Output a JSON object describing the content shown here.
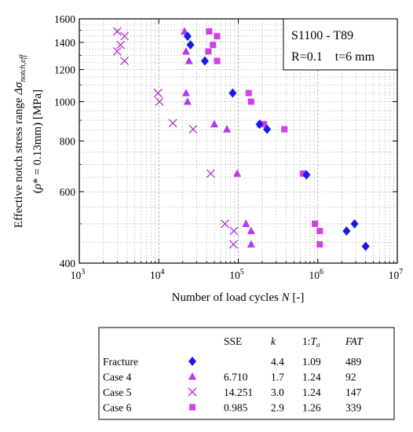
{
  "chart_data": {
    "type": "scatter",
    "x_scale": "log",
    "y_scale": "log",
    "xlim": [
      1000,
      10000000
    ],
    "ylim": [
      400,
      1600
    ],
    "xlabel": "Number of load cycles N [-]",
    "ylabel_line1": "Effective notch stress range Δσnotch,eff",
    "ylabel_line2": "(ρ* = 0.13mm) [MPa]",
    "x_ticks": [
      {
        "value": 1000,
        "base": "10",
        "exp": "3"
      },
      {
        "value": 10000,
        "base": "10",
        "exp": "4"
      },
      {
        "value": 100000,
        "base": "10",
        "exp": "5"
      },
      {
        "value": 1000000,
        "base": "10",
        "exp": "6"
      },
      {
        "value": 10000000,
        "base": "10",
        "exp": "7"
      }
    ],
    "y_ticks": [
      400,
      600,
      800,
      1000,
      1200,
      1400,
      1600
    ],
    "grid": true,
    "annotation": {
      "line1": "S1100 - T89",
      "line2": "R=0.1    t=6 mm"
    },
    "series": [
      {
        "name": "Fracture",
        "marker": "diamond",
        "color": "#1a1ae6",
        "points": [
          [
            23000,
            1450
          ],
          [
            25000,
            1380
          ],
          [
            38000,
            1260
          ],
          [
            85000,
            1050
          ],
          [
            185000,
            880
          ],
          [
            230000,
            855
          ],
          [
            720000,
            660
          ],
          [
            2300000,
            480
          ],
          [
            2900000,
            500
          ],
          [
            4000000,
            440
          ]
        ]
      },
      {
        "name": "Case 4",
        "marker": "triangle",
        "color": "#b338f0",
        "points": [
          [
            21000,
            1490
          ],
          [
            22000,
            1330
          ],
          [
            24000,
            1260
          ],
          [
            22000,
            1050
          ],
          [
            23000,
            1000
          ],
          [
            50000,
            880
          ],
          [
            72000,
            855
          ],
          [
            97000,
            665
          ],
          [
            125000,
            500
          ],
          [
            145000,
            480
          ],
          [
            145000,
            445
          ],
          [
            190000,
            880
          ]
        ]
      },
      {
        "name": "Case 5",
        "marker": "x",
        "color": "#b030d0",
        "points": [
          [
            3000,
            1490
          ],
          [
            3700,
            1450
          ],
          [
            3000,
            1330
          ],
          [
            3300,
            1380
          ],
          [
            3700,
            1260
          ],
          [
            9800,
            1050
          ],
          [
            10200,
            1000
          ],
          [
            15000,
            885
          ],
          [
            27000,
            855
          ],
          [
            45000,
            665
          ],
          [
            68000,
            500
          ],
          [
            88000,
            480
          ],
          [
            87000,
            445
          ]
        ]
      },
      {
        "name": "Case 6",
        "marker": "square",
        "color": "#d040e8",
        "points": [
          [
            43000,
            1490
          ],
          [
            54000,
            1450
          ],
          [
            42000,
            1330
          ],
          [
            48000,
            1380
          ],
          [
            54000,
            1260
          ],
          [
            135000,
            1050
          ],
          [
            145000,
            1000
          ],
          [
            210000,
            880
          ],
          [
            380000,
            855
          ],
          [
            650000,
            665
          ],
          [
            920000,
            500
          ],
          [
            1060000,
            480
          ],
          [
            1060000,
            445
          ]
        ]
      }
    ]
  },
  "legend_table": {
    "headers": {
      "sse": "SSE",
      "k": "k",
      "ratio": "1:Tσ",
      "fat": "FAT"
    },
    "rows": [
      {
        "label": "Fracture",
        "marker": "diamond",
        "color": "#1a1ae6",
        "sse": "",
        "k": "4.4",
        "ratio": "1.09",
        "fat": "489"
      },
      {
        "label": "Case 4",
        "marker": "triangle",
        "color": "#b338f0",
        "sse": "6.710",
        "k": "1.7",
        "ratio": "1.24",
        "fat": "92"
      },
      {
        "label": "Case 5",
        "marker": "x",
        "color": "#b030d0",
        "sse": "14.251",
        "k": "3.0",
        "ratio": "1.24",
        "fat": "147"
      },
      {
        "label": "Case 6",
        "marker": "square",
        "color": "#d040e8",
        "sse": "0.985",
        "k": "2.9",
        "ratio": "1.26",
        "fat": "339"
      }
    ]
  }
}
